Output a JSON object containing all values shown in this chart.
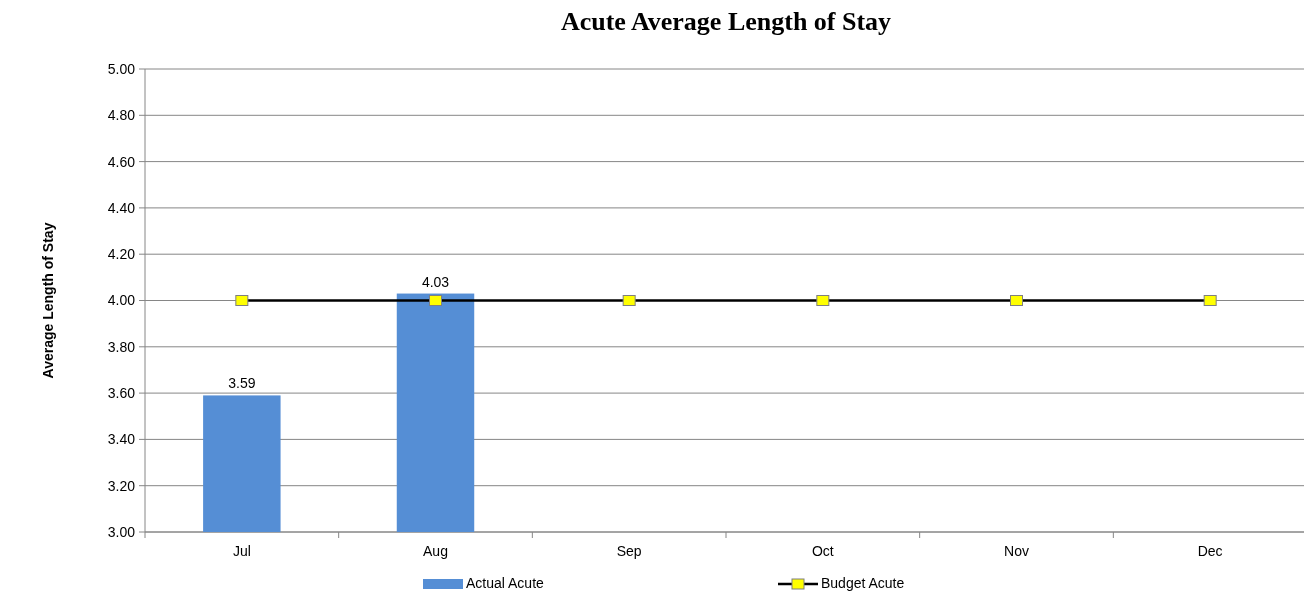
{
  "chart_data": {
    "type": "bar",
    "title": "Acute Average Length of Stay",
    "ylabel": "Average Length of Stay",
    "categories": [
      "Jul",
      "Aug",
      "Sep",
      "Oct",
      "Nov",
      "Dec"
    ],
    "series": [
      {
        "name": "Actual Acute",
        "color": "#558ed5",
        "values": [
          3.59,
          4.03,
          null,
          null,
          null,
          null
        ],
        "value_labels": [
          "3.59",
          "4.03",
          null,
          null,
          null,
          null
        ]
      },
      {
        "name": "Budget Acute",
        "type": "line",
        "color": "#000000",
        "marker": "square",
        "line_style": "solid",
        "values": [
          4,
          4,
          4,
          4,
          4,
          4
        ]
      }
    ],
    "ylim": [
      3,
      5
    ],
    "yticks": [
      {
        "value": 3,
        "label": "3.00"
      },
      {
        "value": 3.2,
        "label": "3.20"
      },
      {
        "value": 3.4,
        "label": "3.40"
      },
      {
        "value": 3.6,
        "label": "3.60"
      },
      {
        "value": 3.8,
        "label": "3.80"
      },
      {
        "value": 4,
        "label": "4.00"
      },
      {
        "value": 4.2,
        "label": "4.20"
      },
      {
        "value": 4.4,
        "label": "4.40"
      },
      {
        "value": 4.6,
        "label": "4.60"
      },
      {
        "value": 4.8,
        "label": "4.80"
      },
      {
        "value": 5,
        "label": "5.00"
      }
    ],
    "grid": "y",
    "legend": "bottom"
  }
}
